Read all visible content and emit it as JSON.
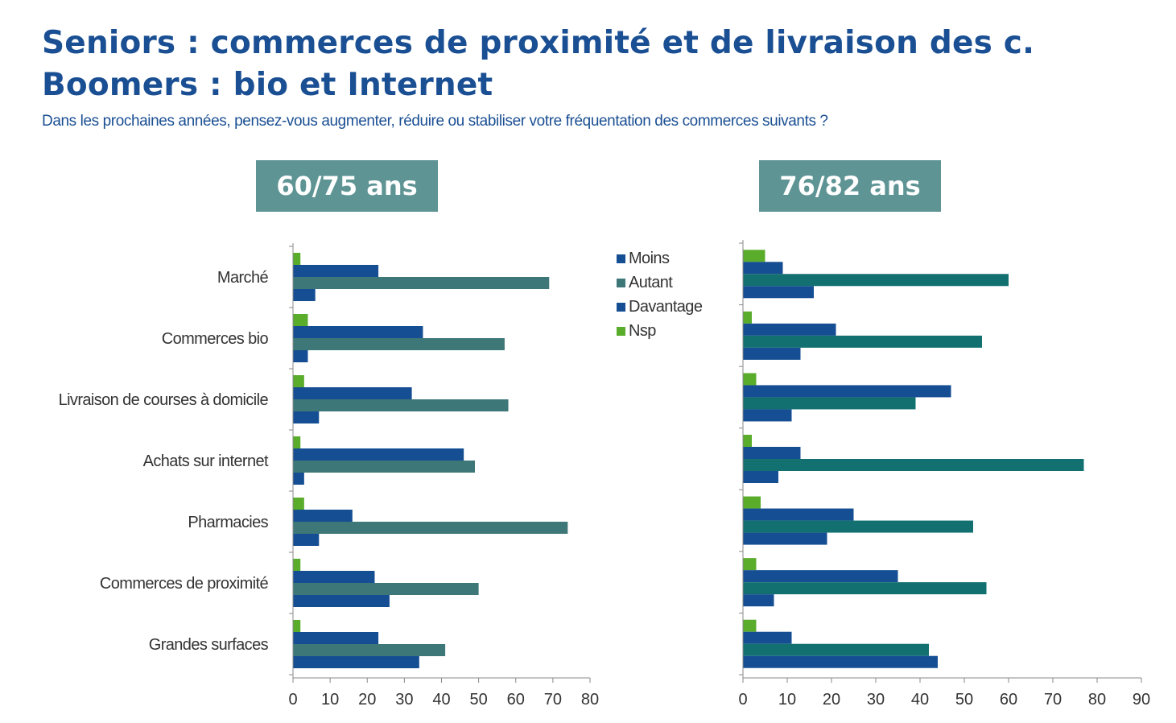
{
  "title_line1": "Seniors : commerces de proximité et de livraison des c.",
  "title_line2": "Boomers : bio et Internet",
  "subtitle": "Dans les prochaines années, pensez-vous augmenter, réduire ou stabiliser votre fréquentation des commerces suivants ?",
  "colors": {
    "Moins": "#154e93",
    "Autant": "#3e7777",
    "Davantage": "#154e93",
    "Nsp": "#5aac2b",
    "Autant_right": "#127070",
    "axis": "#888888"
  },
  "chart_data": [
    {
      "type": "bar",
      "panel_label": "60/75 ans",
      "orientation": "horizontal",
      "categories": [
        "Marché",
        "Commerces bio",
        "Livraison de courses à domicile",
        "Achats sur internet",
        "Pharmacies",
        "Commerces de proximité",
        "Grandes surfaces"
      ],
      "series": [
        {
          "name": "Nsp",
          "values": [
            2,
            4,
            3,
            2,
            3,
            2,
            2
          ]
        },
        {
          "name": "Moins",
          "values": [
            23,
            35,
            32,
            46,
            16,
            22,
            23
          ]
        },
        {
          "name": "Autant",
          "values": [
            69,
            57,
            58,
            49,
            74,
            50,
            41
          ]
        },
        {
          "name": "Davantage",
          "values": [
            6,
            4,
            7,
            3,
            7,
            26,
            34
          ]
        }
      ],
      "xlim": [
        0,
        80
      ],
      "xticks": [
        0,
        10,
        20,
        30,
        40,
        50,
        60,
        70,
        80
      ],
      "grid": false
    },
    {
      "type": "bar",
      "panel_label": "76/82 ans",
      "orientation": "horizontal",
      "categories": [
        "Marché",
        "Commerces bio",
        "Livraison de courses à domicile",
        "Achats sur internet",
        "Pharmacies",
        "Commerces de proximité",
        "Grandes surfaces"
      ],
      "series": [
        {
          "name": "Nsp",
          "values": [
            5,
            2,
            3,
            2,
            4,
            3,
            3
          ]
        },
        {
          "name": "Moins",
          "values": [
            9,
            21,
            47,
            13,
            25,
            35,
            11
          ]
        },
        {
          "name": "Autant",
          "values": [
            60,
            54,
            39,
            77,
            52,
            55,
            42
          ]
        },
        {
          "name": "Davantage",
          "values": [
            16,
            13,
            11,
            8,
            19,
            7,
            44
          ]
        }
      ],
      "xlim": [
        0,
        90
      ],
      "xticks": [
        0,
        10,
        20,
        30,
        40,
        50,
        60,
        70,
        80,
        90
      ],
      "grid": false
    }
  ],
  "legend": {
    "placement": "between panels",
    "items": [
      "Moins",
      "Autant",
      "Davantage",
      "Nsp"
    ]
  }
}
